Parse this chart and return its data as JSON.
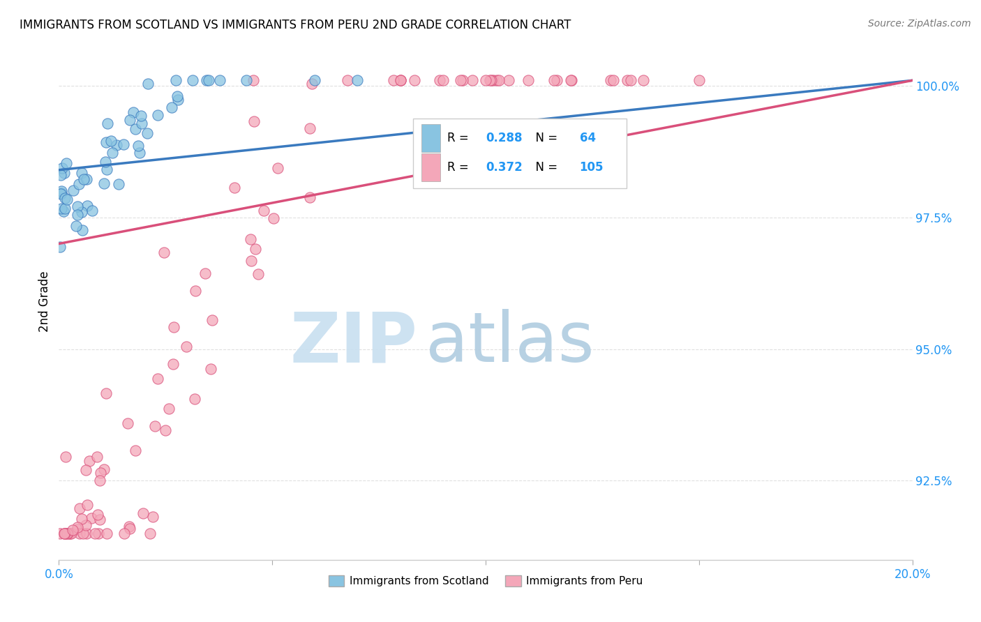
{
  "title": "IMMIGRANTS FROM SCOTLAND VS IMMIGRANTS FROM PERU 2ND GRADE CORRELATION CHART",
  "source": "Source: ZipAtlas.com",
  "ylabel": "2nd Grade",
  "ytick_labels": [
    "100.0%",
    "97.5%",
    "95.0%",
    "92.5%"
  ],
  "ytick_values": [
    1.0,
    0.975,
    0.95,
    0.925
  ],
  "xmin": 0.0,
  "xmax": 0.2,
  "ymin": 0.91,
  "ymax": 1.008,
  "legend_scotland": "Immigrants from Scotland",
  "legend_peru": "Immigrants from Peru",
  "R_scotland": 0.288,
  "N_scotland": 64,
  "R_peru": 0.372,
  "N_peru": 105,
  "color_scotland": "#89c4e1",
  "color_peru": "#f4a7b9",
  "trendline_scotland_color": "#3a7abf",
  "trendline_peru_color": "#d94f7a",
  "scot_trend_x0": 0.0,
  "scot_trend_y0": 0.984,
  "scot_trend_x1": 0.2,
  "scot_trend_y1": 1.001,
  "peru_trend_x0": 0.0,
  "peru_trend_y0": 0.97,
  "peru_trend_x1": 0.2,
  "peru_trend_y1": 1.001,
  "grid_color": "#e0e0e0",
  "grid_style": "--",
  "watermark_zip_color": "#c8dff0",
  "watermark_atlas_color": "#b0cce0",
  "bottom_border_color": "#c0c0c0",
  "right_tick_color": "#2196F3",
  "xtick_color": "#2196F3"
}
